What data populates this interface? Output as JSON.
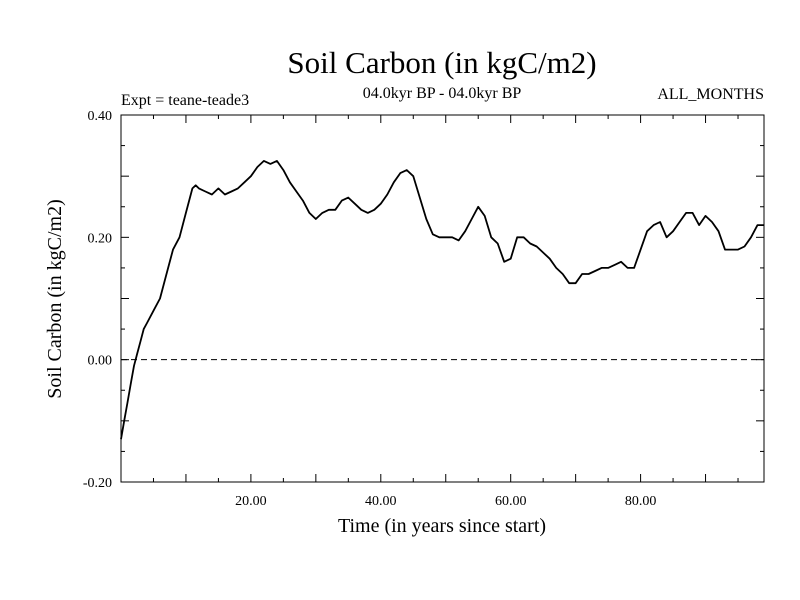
{
  "chart_data": {
    "type": "line",
    "title": "Soil Carbon (in kgC/m2)",
    "subtitle": "04.0kyr BP - 04.0kyr BP",
    "expt_label": "Expt = teane-teade3",
    "months_label": "ALL_MONTHS",
    "xlabel": "Time (in years since start)",
    "ylabel": "Soil Carbon (in kgC/m2)",
    "xlim": [
      0,
      99
    ],
    "ylim": [
      -0.2,
      0.4
    ],
    "x_ticks": [
      20,
      40,
      60,
      80
    ],
    "x_tick_labels": [
      "20.00",
      "40.00",
      "60.00",
      "80.00"
    ],
    "y_ticks": [
      -0.2,
      0.0,
      0.2,
      0.4
    ],
    "y_tick_labels": [
      "-0.20",
      "0.00",
      "0.20",
      "0.40"
    ],
    "zero_line": true,
    "grid": false,
    "series": [
      {
        "color": "#000000",
        "x": [
          0,
          0.5,
          1,
          1.5,
          2,
          2.5,
          3,
          3.5,
          4,
          5,
          6,
          7,
          8,
          9,
          10,
          11,
          11.5,
          12,
          13,
          14,
          15,
          16,
          17,
          18,
          19,
          20,
          21,
          22,
          23,
          24,
          25,
          26,
          27,
          28,
          29,
          30,
          31,
          32,
          33,
          34,
          35,
          36,
          37,
          38,
          39,
          40,
          41,
          42,
          43,
          44,
          45,
          46,
          47,
          48,
          49,
          50,
          51,
          52,
          53,
          54,
          55,
          56,
          57,
          58,
          59,
          60,
          61,
          62,
          63,
          64,
          65,
          66,
          67,
          68,
          69,
          70,
          71,
          72,
          73,
          74,
          75,
          76,
          77,
          78,
          79,
          80,
          81,
          82,
          83,
          84,
          85,
          86,
          87,
          88,
          89,
          90,
          91,
          92,
          93,
          94,
          95,
          96,
          97,
          98,
          99
        ],
        "y": [
          -0.13,
          -0.1,
          -0.07,
          -0.04,
          -0.01,
          0.01,
          0.03,
          0.05,
          0.06,
          0.08,
          0.1,
          0.14,
          0.18,
          0.2,
          0.24,
          0.28,
          0.285,
          0.28,
          0.275,
          0.27,
          0.28,
          0.27,
          0.275,
          0.28,
          0.29,
          0.3,
          0.315,
          0.325,
          0.32,
          0.325,
          0.31,
          0.29,
          0.275,
          0.26,
          0.24,
          0.23,
          0.24,
          0.245,
          0.245,
          0.26,
          0.265,
          0.255,
          0.245,
          0.24,
          0.245,
          0.255,
          0.27,
          0.29,
          0.305,
          0.31,
          0.3,
          0.265,
          0.23,
          0.205,
          0.2,
          0.2,
          0.2,
          0.195,
          0.21,
          0.23,
          0.25,
          0.235,
          0.2,
          0.19,
          0.16,
          0.165,
          0.2,
          0.2,
          0.19,
          0.185,
          0.175,
          0.165,
          0.15,
          0.14,
          0.125,
          0.125,
          0.14,
          0.14,
          0.145,
          0.15,
          0.15,
          0.155,
          0.16,
          0.15,
          0.15,
          0.18,
          0.21,
          0.22,
          0.225,
          0.2,
          0.21,
          0.225,
          0.24,
          0.24,
          0.22,
          0.235,
          0.225,
          0.21,
          0.18,
          0.18,
          0.18,
          0.185,
          0.2,
          0.22,
          0.22
        ]
      }
    ]
  }
}
